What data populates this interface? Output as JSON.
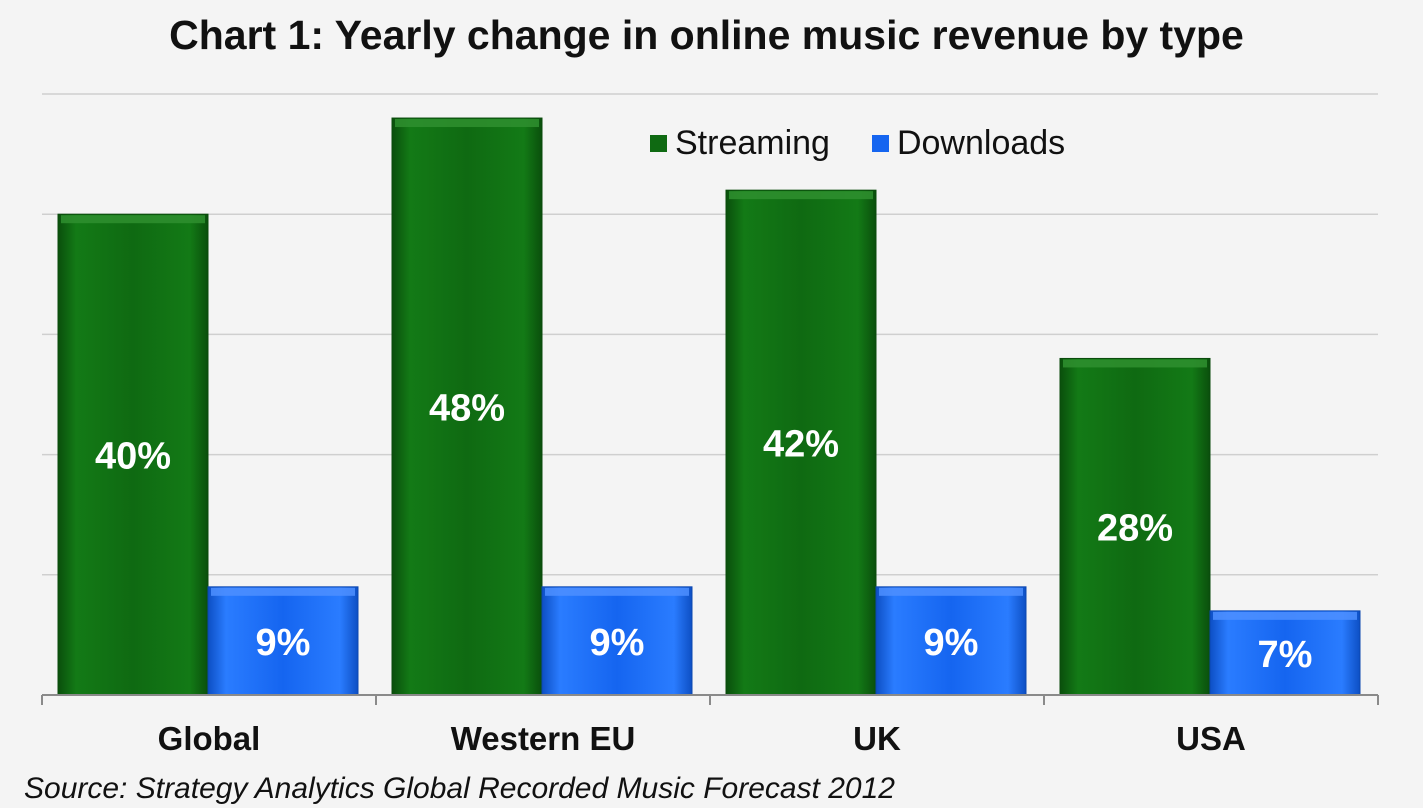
{
  "chart_data": {
    "type": "bar",
    "title": "Chart 1: Yearly change in online music revenue by type",
    "categories": [
      "Global",
      "Western EU",
      "UK",
      "USA"
    ],
    "series": [
      {
        "name": "Streaming",
        "color": "#0f6a12",
        "values": [
          40,
          48,
          42,
          28
        ],
        "labels": [
          "40%",
          "48%",
          "42%",
          "28%"
        ]
      },
      {
        "name": "Downloads",
        "color": "#1565f0",
        "values": [
          9,
          9,
          9,
          7
        ],
        "labels": [
          "9%",
          "9%",
          "9%",
          "7%"
        ]
      }
    ],
    "ylim": [
      0,
      50
    ],
    "y_gridlines": [
      10,
      20,
      30,
      40,
      50
    ],
    "y_tick_labels_shown": false,
    "grid": true,
    "legend_position": "top-right",
    "source": "Source: Strategy Analytics  Global Recorded Music Forecast 2012"
  }
}
